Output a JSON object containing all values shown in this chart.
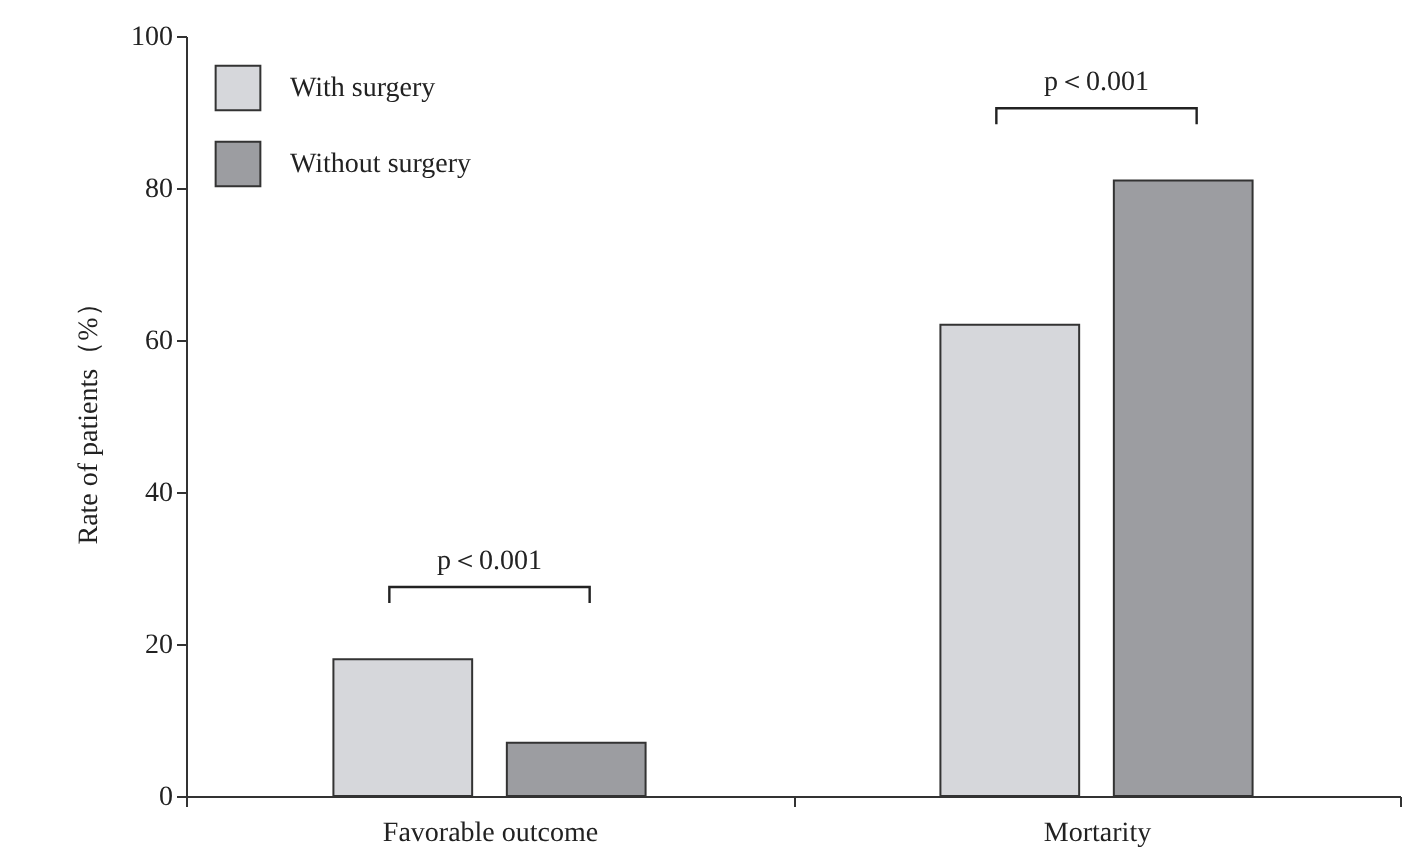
{
  "chart_data": {
    "type": "bar",
    "ylabel": "Rate of patients（%）",
    "categories": [
      "Favorable outcome",
      "Mortarity"
    ],
    "series": [
      {
        "name": "With surgery",
        "color": "#d6d7db",
        "values": [
          18,
          62
        ]
      },
      {
        "name": "Without surgery",
        "color": "#9c9da1",
        "values": [
          7,
          81
        ]
      }
    ],
    "ylim": [
      0,
      100
    ],
    "yticks": [
      0,
      20,
      40,
      60,
      80,
      100
    ],
    "grid": false,
    "legend": "top left",
    "annotations": [
      "p＜0.001",
      "p＜0.001"
    ]
  }
}
